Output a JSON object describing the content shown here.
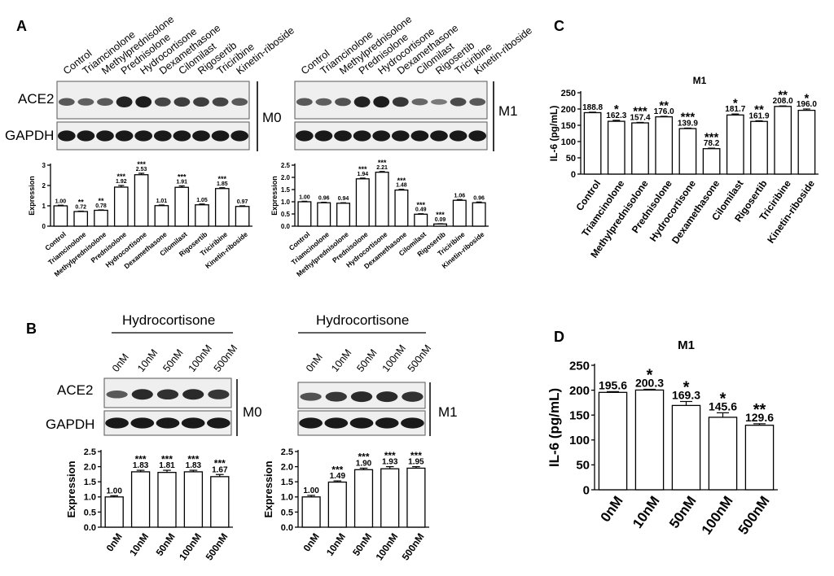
{
  "figure": {
    "panel_labels": [
      "A",
      "B",
      "C",
      "D"
    ],
    "blot_rows": [
      "ACE2",
      "GAPDH"
    ],
    "cell_types": [
      "M0",
      "M1"
    ],
    "treatment_header": "Hydrocortisone"
  },
  "chart_data": [
    {
      "id": "A_M0",
      "type": "bar",
      "title": "",
      "xlabel": "",
      "ylabel": "Expression",
      "ylim": [
        0,
        3
      ],
      "yticks": [
        "0",
        "1",
        "2",
        "3"
      ],
      "categories": [
        "Control",
        "Triamcinolone",
        "Methylprednisolone",
        "Prednisolone",
        "Hydrocortisone",
        "Dexamethasone",
        "Cilomilast",
        "Rigosertib",
        "Triciribine",
        "Kinetin-riboside"
      ],
      "values": [
        1.0,
        0.72,
        0.78,
        1.92,
        2.53,
        1.01,
        1.91,
        1.05,
        1.85,
        0.97
      ],
      "value_labels": [
        "1.00",
        "0.72",
        "0.78",
        "1.92",
        "2.53",
        "1.01",
        "1.91",
        "1.05",
        "1.85",
        "0.97"
      ],
      "significance": [
        "",
        "**",
        "**",
        "***",
        "***",
        "",
        "***",
        "",
        "***",
        ""
      ],
      "errors": [
        0.03,
        0.02,
        0.02,
        0.08,
        0.07,
        0.03,
        0.07,
        0.04,
        0.04,
        0.03
      ]
    },
    {
      "id": "A_M1",
      "type": "bar",
      "title": "",
      "xlabel": "",
      "ylabel": "Expression",
      "ylim": [
        0,
        2.5
      ],
      "yticks": [
        "0.0",
        "0.5",
        "1.0",
        "1.5",
        "2.0",
        "2.5"
      ],
      "categories": [
        "Control",
        "Triamcinolone",
        "Methylprednisolone",
        "Prednisolone",
        "Hydrocortisone",
        "Dexamethasone",
        "Cilomilast",
        "Rigosertib",
        "Triciribine",
        "Kinetin-riboside"
      ],
      "values": [
        1.0,
        0.96,
        0.94,
        1.94,
        2.21,
        1.48,
        0.49,
        0.09,
        1.06,
        0.96
      ],
      "value_labels": [
        "1.00",
        "0.96",
        "0.94",
        "1.94",
        "2.21",
        "1.48",
        "0.49",
        "0.09",
        "1.06",
        "0.96"
      ],
      "significance": [
        "",
        "",
        "",
        "***",
        "***",
        "***",
        "***",
        "***",
        "",
        ""
      ],
      "errors": [
        0.02,
        0.02,
        0.02,
        0.03,
        0.03,
        0.03,
        0.02,
        0.01,
        0.03,
        0.03
      ]
    },
    {
      "id": "B_M0",
      "type": "bar",
      "title": "",
      "xlabel": "",
      "ylabel": "Expression",
      "ylim": [
        0,
        2.5
      ],
      "yticks": [
        "0.0",
        "0.5",
        "1.0",
        "1.5",
        "2.0",
        "2.5"
      ],
      "categories": [
        "0nM",
        "10nM",
        "50nM",
        "100nM",
        "500nM"
      ],
      "values": [
        1.0,
        1.83,
        1.81,
        1.83,
        1.67
      ],
      "value_labels": [
        "1.00",
        "1.83",
        "1.81",
        "1.83",
        "1.67"
      ],
      "significance": [
        "",
        "***",
        "***",
        "***",
        "***"
      ],
      "errors": [
        0.04,
        0.05,
        0.07,
        0.05,
        0.07
      ]
    },
    {
      "id": "B_M1",
      "type": "bar",
      "title": "",
      "xlabel": "",
      "ylabel": "Expression",
      "ylim": [
        0,
        2.5
      ],
      "yticks": [
        "0.0",
        "0.5",
        "1.0",
        "1.5",
        "2.0",
        "2.5"
      ],
      "categories": [
        "0nM",
        "10nM",
        "50nM",
        "100nM",
        "500nM"
      ],
      "values": [
        1.0,
        1.49,
        1.9,
        1.93,
        1.95
      ],
      "value_labels": [
        "1.00",
        "1.49",
        "1.90",
        "1.93",
        "1.95"
      ],
      "significance": [
        "",
        "***",
        "***",
        "***",
        "***"
      ],
      "errors": [
        0.05,
        0.04,
        0.05,
        0.07,
        0.05
      ]
    },
    {
      "id": "C",
      "type": "bar",
      "title": "M1",
      "xlabel": "",
      "ylabel": "IL-6 (pg/mL)",
      "ylim": [
        0,
        250
      ],
      "yticks": [
        "0",
        "50",
        "100",
        "150",
        "200",
        "250"
      ],
      "categories": [
        "Control",
        "Triamcinolone",
        "Methylprednisolone",
        "Prednisolone",
        "Hydrocortisone",
        "Dexamethasone",
        "Cilomilast",
        "Rigosertib",
        "Triciribine",
        "Kinetin-riboside"
      ],
      "values": [
        188.8,
        162.3,
        157.4,
        176.0,
        139.9,
        78.2,
        181.7,
        161.9,
        208.0,
        196.0
      ],
      "value_labels": [
        "188.8",
        "162.3",
        "157.4",
        "176.0",
        "139.9",
        "78.2",
        "181.7",
        "161.9",
        "208.0",
        "196.0"
      ],
      "significance": [
        "",
        "*",
        "***",
        "**",
        "***",
        "***",
        "*",
        "**",
        "**",
        "*"
      ],
      "errors": [
        1.5,
        3,
        1.5,
        1.5,
        1.5,
        1.5,
        3,
        2,
        1.5,
        4
      ]
    },
    {
      "id": "D",
      "type": "bar",
      "title": "M1",
      "xlabel": "",
      "ylabel": "IL-6 (pg/mL)",
      "ylim": [
        0,
        250
      ],
      "yticks": [
        "0",
        "50",
        "100",
        "150",
        "200",
        "250"
      ],
      "categories": [
        "0nM",
        "10nM",
        "50nM",
        "100nM",
        "500nM"
      ],
      "values": [
        195.6,
        200.3,
        169.3,
        145.6,
        129.6
      ],
      "value_labels": [
        "195.6",
        "200.3",
        "169.3",
        "145.6",
        "129.6"
      ],
      "significance": [
        "",
        "*",
        "*",
        "*",
        "**"
      ],
      "errors": [
        1.5,
        1.5,
        8,
        9,
        3
      ]
    }
  ],
  "blots": [
    {
      "id": "A_M0",
      "ace2": [
        0.55,
        0.5,
        0.55,
        0.95,
        1.0,
        0.7,
        0.75,
        0.75,
        0.7,
        0.55
      ],
      "gapdh": [
        0.9,
        0.9,
        0.9,
        0.9,
        0.9,
        0.9,
        0.9,
        0.9,
        0.9,
        0.9
      ]
    },
    {
      "id": "A_M1",
      "ace2": [
        0.55,
        0.5,
        0.6,
        0.95,
        1.0,
        0.8,
        0.45,
        0.3,
        0.65,
        0.55
      ],
      "gapdh": [
        0.9,
        0.9,
        0.9,
        0.9,
        0.9,
        0.9,
        0.9,
        0.9,
        0.9,
        0.9
      ]
    },
    {
      "id": "B_M0",
      "ace2": [
        0.55,
        0.9,
        0.85,
        0.9,
        0.8
      ],
      "gapdh": [
        0.9,
        0.9,
        0.9,
        0.9,
        0.9
      ]
    },
    {
      "id": "B_M1",
      "ace2": [
        0.6,
        0.8,
        0.9,
        0.9,
        0.85
      ],
      "gapdh": [
        0.9,
        0.9,
        0.9,
        0.9,
        0.9
      ]
    }
  ]
}
